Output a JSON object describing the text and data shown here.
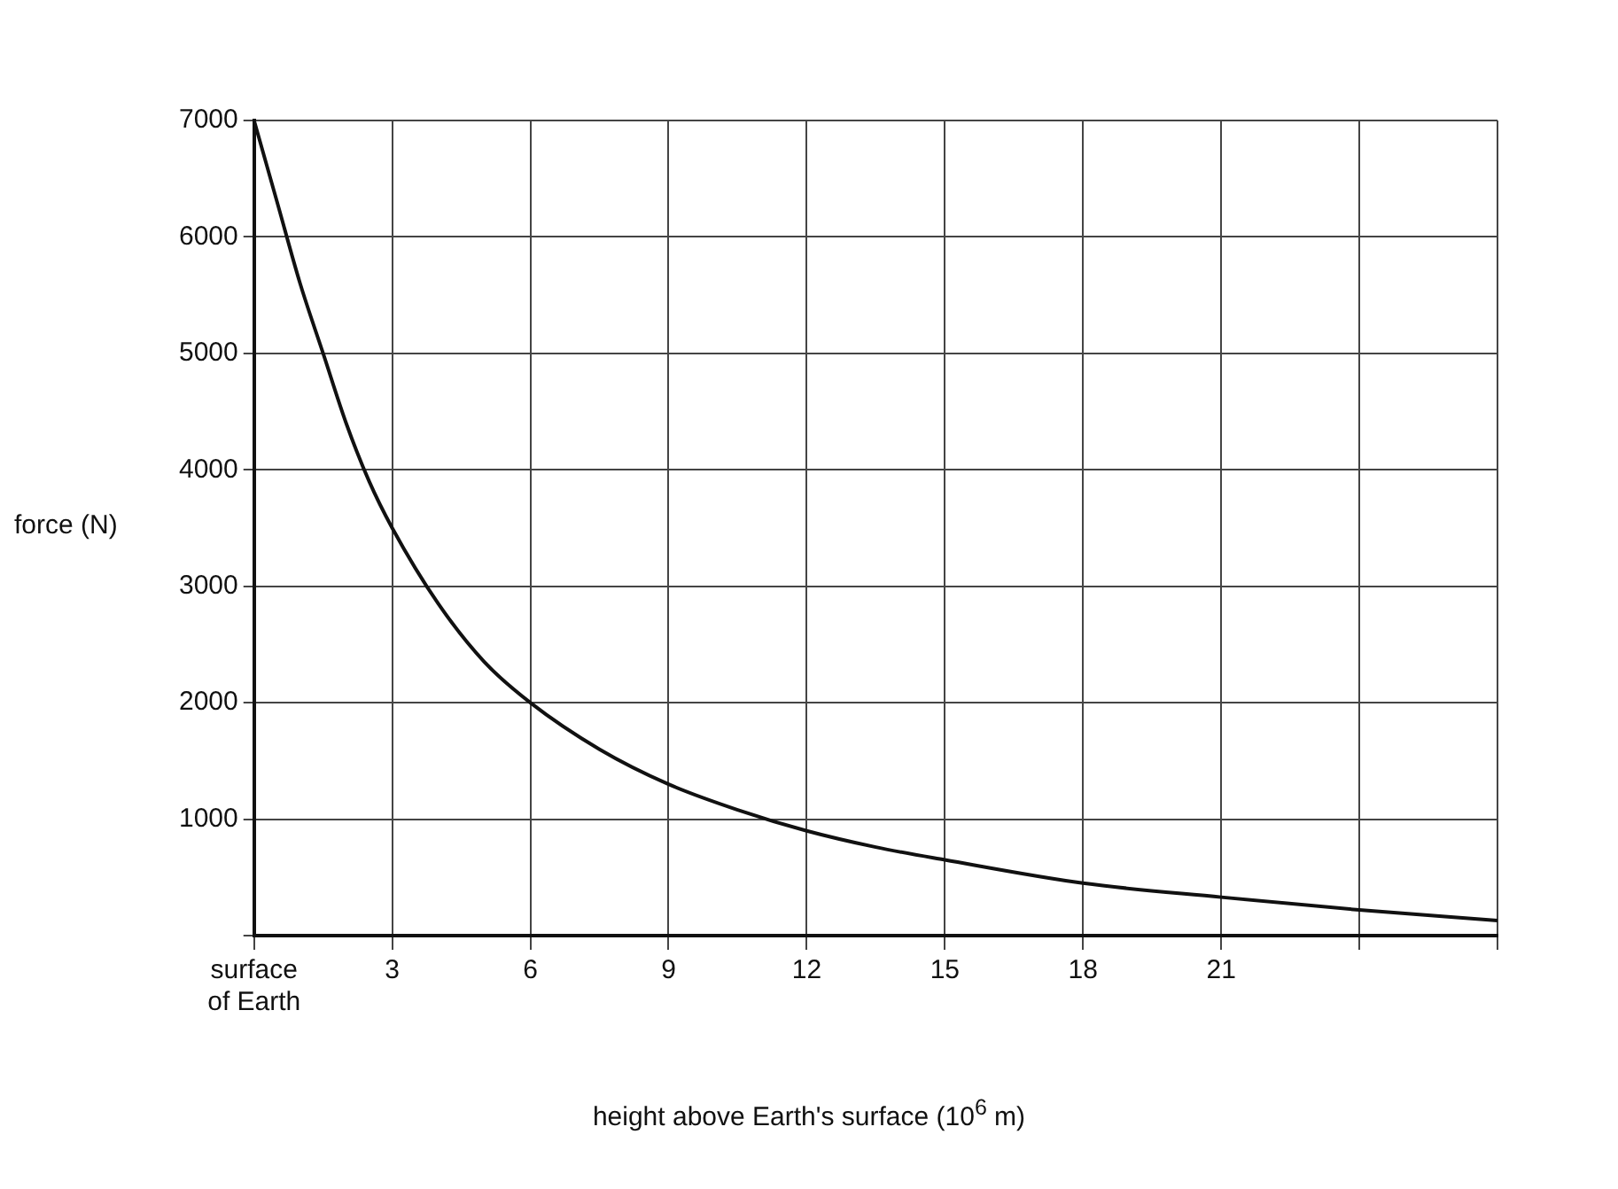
{
  "chart_data": {
    "type": "line",
    "xlabel": "height above Earth's surface (10$^{6}$ m)",
    "ylabel": "force (N)",
    "x": [
      0,
      0.5,
      1,
      1.5,
      2,
      2.5,
      3,
      4,
      5,
      6,
      7.5,
      9,
      10.5,
      12,
      13.5,
      15,
      18,
      21,
      24,
      27
    ],
    "series": [
      {
        "color": "#111111",
        "values": [
          7000,
          6300,
          5600,
          5000,
          4400,
          3900,
          3500,
          2850,
          2350,
          2000,
          1600,
          1300,
          1080,
          900,
          760,
          650,
          450,
          330,
          220,
          130
        ]
      }
    ],
    "xlim": [
      0,
      27
    ],
    "ylim": [
      0,
      7000
    ],
    "xticks": [
      {
        "value": 0,
        "label": "surface\nof Earth"
      },
      3,
      6,
      9,
      12,
      15,
      18,
      21,
      {
        "value": 24,
        "label": null
      },
      {
        "value": 27,
        "label": null
      }
    ],
    "yticks": [
      {
        "value": 0,
        "label": null
      },
      1000,
      2000,
      3000,
      4000,
      5000,
      6000,
      7000
    ],
    "grid": true,
    "legend": false,
    "marker": "none",
    "line_style": "solid"
  }
}
